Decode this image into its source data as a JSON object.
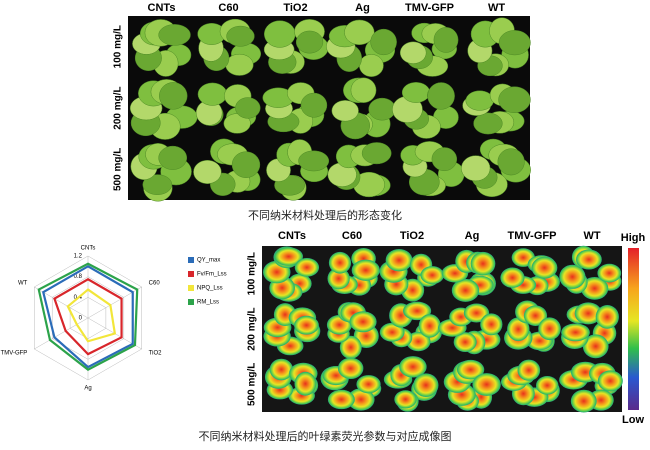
{
  "figure_top": {
    "columns": [
      "CNTs",
      "C60",
      "TiO2",
      "Ag",
      "TMV-GFP",
      "WT"
    ],
    "rows": [
      "100 mg/L",
      "200 mg/L",
      "500 mg/L"
    ],
    "caption": "不同纳米材料处理后的形态变化"
  },
  "chart_data": {
    "type": "radar",
    "axes": [
      "CNTs",
      "C60",
      "TiO2",
      "Ag",
      "TMV-GFP",
      "WT"
    ],
    "ylim": [
      0,
      1.2
    ],
    "yticks": [
      0,
      0.4,
      0.8,
      1.2
    ],
    "series": [
      {
        "name": "QY_max",
        "color": "#2b6cb8",
        "values": [
          1.0,
          1.0,
          1.0,
          0.95,
          0.75,
          1.0
        ]
      },
      {
        "name": "Fv/Fm_Lss",
        "color": "#d8262b",
        "values": [
          0.75,
          0.75,
          0.75,
          0.7,
          0.5,
          0.75
        ]
      },
      {
        "name": "NPQ_Lss",
        "color": "#f2e63a",
        "values": [
          0.55,
          0.5,
          0.6,
          0.45,
          0.25,
          0.45
        ]
      },
      {
        "name": "RM_Lss",
        "color": "#2ca34a",
        "values": [
          1.05,
          1.1,
          1.05,
          1.0,
          0.85,
          1.1
        ]
      }
    ]
  },
  "figure_bottom": {
    "columns": [
      "CNTs",
      "C60",
      "TiO2",
      "Ag",
      "TMV-GFP",
      "WT"
    ],
    "rows": [
      "100 mg/L",
      "200 mg/L",
      "500 mg/L"
    ],
    "colorbar": {
      "high": "High",
      "low": "Low"
    },
    "caption": "不同纳米材料处理后的叶绿素荧光参数与对应成像图"
  }
}
